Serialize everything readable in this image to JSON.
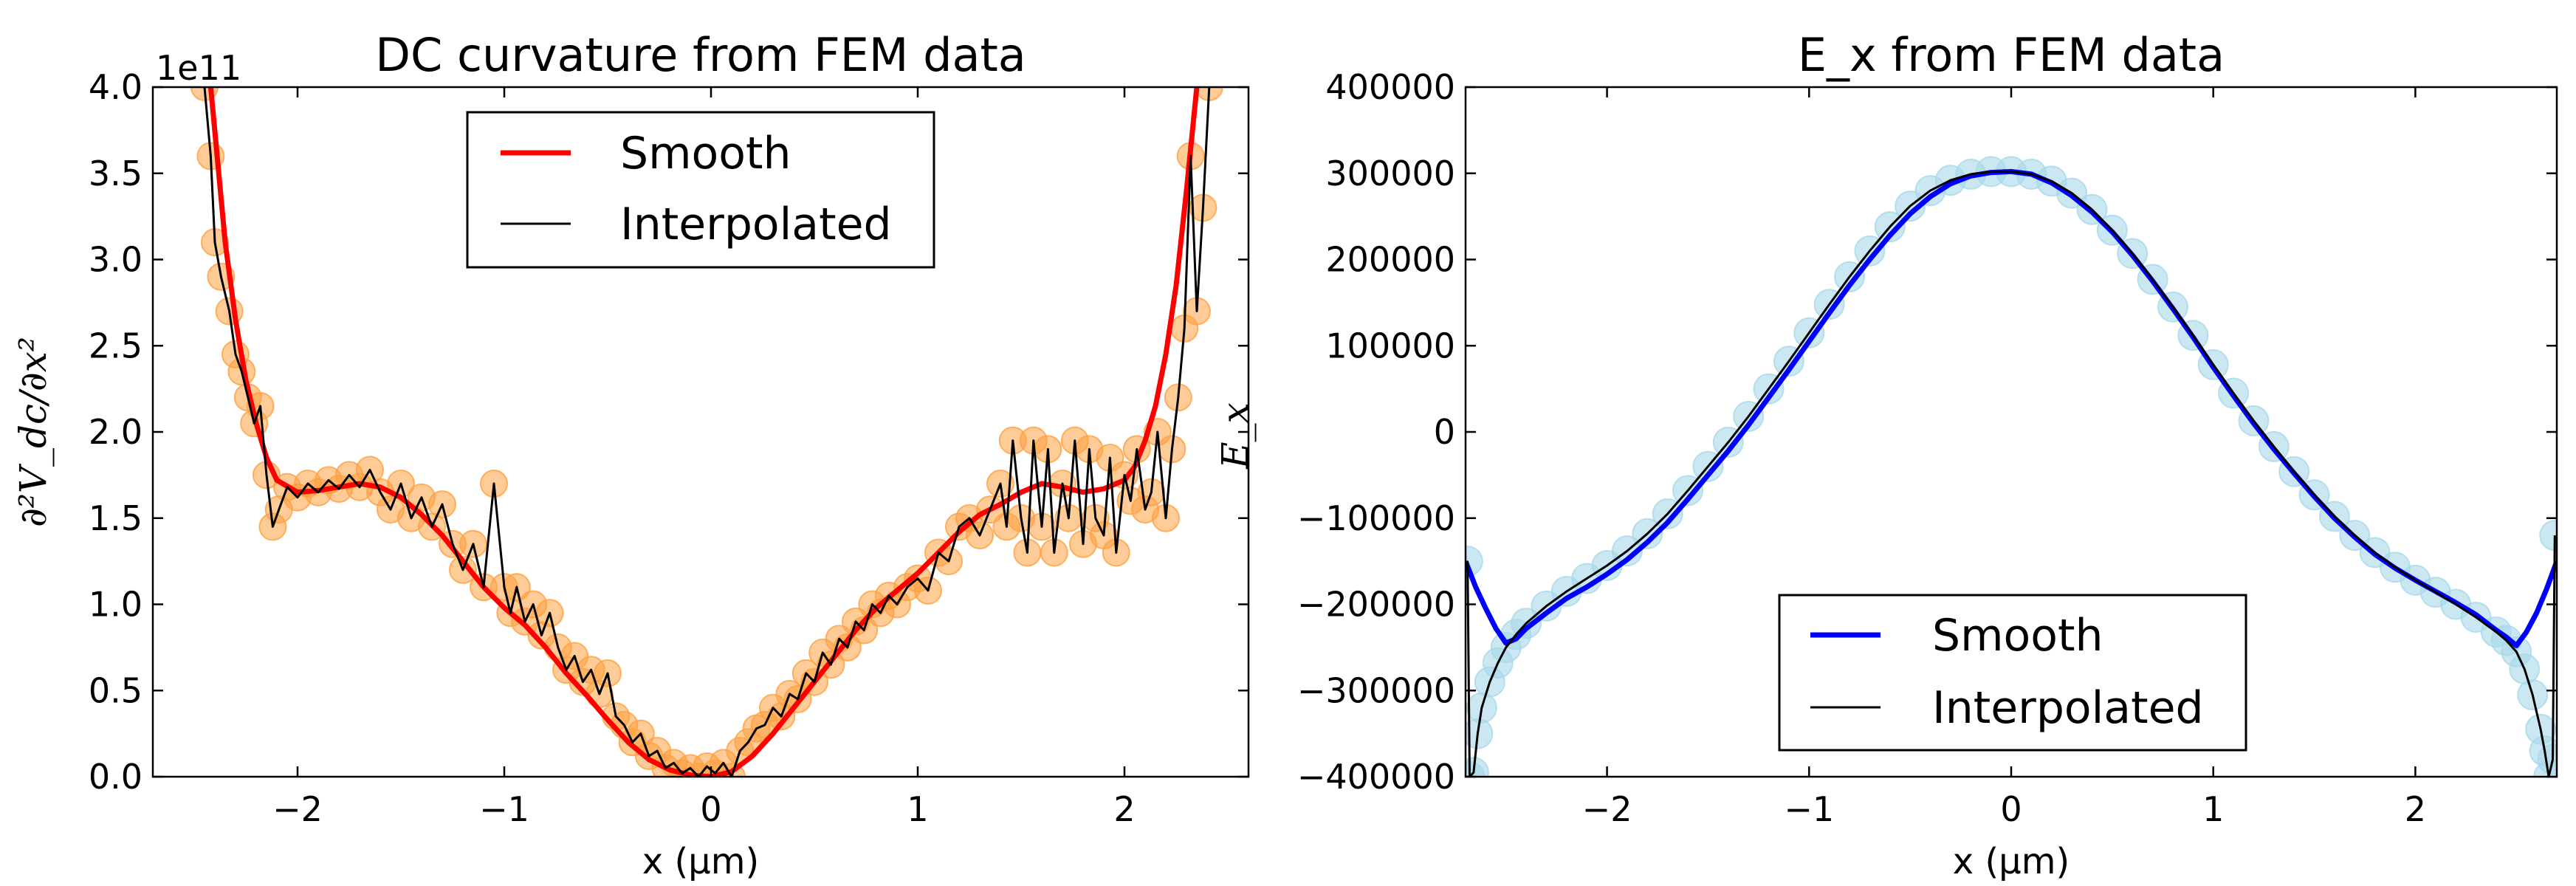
{
  "chart_data": [
    {
      "type": "line",
      "title": "DC curvature from FEM data",
      "xlabel": "x (μm)",
      "ylabel": "∂²V_dc/∂x²",
      "offset_text": "1e11",
      "xlim": [
        -2.7,
        2.6
      ],
      "ylim": [
        0,
        4.0
      ],
      "xticks": [
        -2,
        -1,
        0,
        1,
        2
      ],
      "xtick_labels": [
        "−2",
        "−1",
        "0",
        "1",
        "2"
      ],
      "yticks": [
        0,
        0.5,
        1.0,
        1.5,
        2.0,
        2.5,
        3.0,
        3.5,
        4.0
      ],
      "ytick_labels": [
        "0.0",
        "0.5",
        "1.0",
        "1.5",
        "2.0",
        "2.5",
        "3.0",
        "3.5",
        "4.0"
      ],
      "legend": {
        "placement": "top-center",
        "entries": [
          "Smooth",
          "Interpolated"
        ]
      },
      "colors": {
        "smooth": "#ff0000",
        "interpolated": "#000000",
        "markers": "#ffa040"
      },
      "series": [
        {
          "name": "Smooth",
          "x": [
            -2.42,
            -2.35,
            -2.3,
            -2.25,
            -2.2,
            -2.15,
            -2.1,
            -2.0,
            -1.9,
            -1.8,
            -1.7,
            -1.6,
            -1.5,
            -1.4,
            -1.3,
            -1.2,
            -1.1,
            -1.0,
            -0.9,
            -0.8,
            -0.7,
            -0.6,
            -0.5,
            -0.4,
            -0.3,
            -0.2,
            -0.1,
            0.0,
            0.1,
            0.2,
            0.3,
            0.4,
            0.5,
            0.6,
            0.7,
            0.8,
            0.9,
            1.0,
            1.1,
            1.2,
            1.3,
            1.4,
            1.5,
            1.6,
            1.7,
            1.8,
            1.9,
            2.0,
            2.05,
            2.1,
            2.15,
            2.2,
            2.25,
            2.3,
            2.35
          ],
          "y": [
            4.0,
            3.1,
            2.65,
            2.3,
            2.05,
            1.85,
            1.72,
            1.65,
            1.66,
            1.68,
            1.7,
            1.68,
            1.62,
            1.52,
            1.4,
            1.25,
            1.1,
            0.98,
            0.88,
            0.75,
            0.6,
            0.47,
            0.33,
            0.2,
            0.1,
            0.04,
            0.01,
            0.0,
            0.03,
            0.12,
            0.25,
            0.4,
            0.55,
            0.7,
            0.85,
            0.98,
            1.08,
            1.18,
            1.3,
            1.42,
            1.52,
            1.58,
            1.65,
            1.7,
            1.68,
            1.65,
            1.67,
            1.72,
            1.8,
            1.95,
            2.15,
            2.45,
            2.85,
            3.4,
            4.0
          ]
        },
        {
          "name": "Interpolated",
          "x": [
            -2.45,
            -2.42,
            -2.4,
            -2.37,
            -2.33,
            -2.3,
            -2.27,
            -2.24,
            -2.21,
            -2.18,
            -2.15,
            -2.12,
            -2.09,
            -2.05,
            -2.0,
            -1.95,
            -1.9,
            -1.85,
            -1.8,
            -1.75,
            -1.7,
            -1.65,
            -1.6,
            -1.55,
            -1.5,
            -1.45,
            -1.4,
            -1.35,
            -1.3,
            -1.25,
            -1.2,
            -1.15,
            -1.1,
            -1.05,
            -1.0,
            -0.97,
            -0.94,
            -0.9,
            -0.86,
            -0.82,
            -0.78,
            -0.74,
            -0.7,
            -0.66,
            -0.62,
            -0.58,
            -0.54,
            -0.5,
            -0.46,
            -0.42,
            -0.38,
            -0.34,
            -0.3,
            -0.26,
            -0.22,
            -0.18,
            -0.14,
            -0.1,
            -0.06,
            -0.02,
            0.02,
            0.06,
            0.1,
            0.14,
            0.18,
            0.22,
            0.26,
            0.3,
            0.34,
            0.38,
            0.42,
            0.46,
            0.5,
            0.54,
            0.58,
            0.62,
            0.66,
            0.7,
            0.74,
            0.78,
            0.82,
            0.86,
            0.9,
            0.95,
            1.0,
            1.05,
            1.1,
            1.15,
            1.2,
            1.25,
            1.3,
            1.35,
            1.4,
            1.43,
            1.46,
            1.5,
            1.53,
            1.56,
            1.6,
            1.63,
            1.66,
            1.7,
            1.73,
            1.76,
            1.8,
            1.83,
            1.86,
            1.9,
            1.93,
            1.96,
            2.0,
            2.03,
            2.06,
            2.1,
            2.13,
            2.16,
            2.2,
            2.23,
            2.26,
            2.29,
            2.32,
            2.35,
            2.38,
            2.41
          ],
          "y": [
            4.0,
            3.6,
            3.1,
            2.9,
            2.7,
            2.45,
            2.35,
            2.2,
            2.05,
            2.15,
            1.75,
            1.45,
            1.55,
            1.68,
            1.62,
            1.7,
            1.65,
            1.72,
            1.67,
            1.75,
            1.68,
            1.78,
            1.65,
            1.55,
            1.7,
            1.5,
            1.62,
            1.45,
            1.58,
            1.35,
            1.2,
            1.35,
            1.1,
            1.7,
            1.1,
            0.95,
            1.1,
            0.9,
            1.0,
            0.82,
            0.95,
            0.75,
            0.62,
            0.7,
            0.55,
            0.62,
            0.48,
            0.6,
            0.35,
            0.3,
            0.2,
            0.25,
            0.12,
            0.15,
            0.05,
            0.08,
            0.02,
            0.05,
            0.0,
            0.06,
            0.02,
            0.08,
            0.0,
            0.15,
            0.2,
            0.28,
            0.3,
            0.4,
            0.35,
            0.48,
            0.45,
            0.6,
            0.55,
            0.72,
            0.65,
            0.8,
            0.75,
            0.9,
            0.85,
            1.0,
            0.95,
            1.05,
            1.0,
            1.1,
            1.15,
            1.08,
            1.3,
            1.25,
            1.45,
            1.5,
            1.4,
            1.55,
            1.7,
            1.45,
            1.95,
            1.5,
            1.3,
            1.95,
            1.45,
            1.9,
            1.3,
            1.7,
            1.5,
            1.95,
            1.35,
            1.9,
            1.5,
            1.4,
            1.85,
            1.3,
            1.75,
            1.6,
            1.9,
            1.55,
            1.65,
            2.0,
            1.5,
            1.9,
            2.2,
            2.6,
            3.6,
            2.7,
            3.3,
            4.0
          ]
        }
      ]
    },
    {
      "type": "line",
      "title": "E_x from FEM data",
      "xlabel": "x (μm)",
      "ylabel": "E_x",
      "xlim": [
        -2.7,
        2.7
      ],
      "ylim": [
        -400000,
        400000
      ],
      "xticks": [
        -2,
        -1,
        0,
        1,
        2
      ],
      "xtick_labels": [
        "−2",
        "−1",
        "0",
        "1",
        "2"
      ],
      "yticks": [
        -400000,
        -300000,
        -200000,
        -100000,
        0,
        100000,
        200000,
        300000,
        400000
      ],
      "ytick_labels": [
        "−400000",
        "−300000",
        "−200000",
        "−100000",
        "0",
        "100000",
        "200000",
        "300000",
        "400000"
      ],
      "legend": {
        "placement": "lower-center",
        "entries": [
          "Smooth",
          "Interpolated"
        ]
      },
      "colors": {
        "smooth": "#0000ff",
        "interpolated": "#000000",
        "markers": "#a8d8ea"
      },
      "series": [
        {
          "name": "Smooth",
          "x": [
            -2.7,
            -2.65,
            -2.6,
            -2.55,
            -2.5,
            -2.45,
            -2.4,
            -2.3,
            -2.2,
            -2.1,
            -2.0,
            -1.9,
            -1.8,
            -1.7,
            -1.6,
            -1.5,
            -1.4,
            -1.3,
            -1.2,
            -1.1,
            -1.0,
            -0.9,
            -0.8,
            -0.7,
            -0.6,
            -0.5,
            -0.4,
            -0.3,
            -0.2,
            -0.1,
            0.0,
            0.1,
            0.2,
            0.3,
            0.4,
            0.5,
            0.6,
            0.7,
            0.8,
            0.9,
            1.0,
            1.1,
            1.2,
            1.3,
            1.4,
            1.5,
            1.6,
            1.7,
            1.8,
            1.9,
            2.0,
            2.1,
            2.2,
            2.3,
            2.4,
            2.45,
            2.5,
            2.55,
            2.6,
            2.65,
            2.7
          ],
          "y": [
            -150000,
            -180000,
            -205000,
            -228000,
            -245000,
            -240000,
            -228000,
            -210000,
            -193000,
            -180000,
            -165000,
            -148000,
            -128000,
            -105000,
            -78000,
            -50000,
            -22000,
            8000,
            40000,
            72000,
            105000,
            138000,
            170000,
            200000,
            228000,
            253000,
            273000,
            288000,
            297000,
            301000,
            302000,
            299000,
            289000,
            274000,
            255000,
            232000,
            205000,
            175000,
            143000,
            110000,
            75000,
            42000,
            10000,
            -20000,
            -48000,
            -75000,
            -100000,
            -122000,
            -142000,
            -158000,
            -172000,
            -185000,
            -198000,
            -212000,
            -230000,
            -238000,
            -248000,
            -232000,
            -210000,
            -182000,
            -150000
          ]
        },
        {
          "name": "Interpolated",
          "x": [
            -2.69,
            -2.68,
            -2.66,
            -2.64,
            -2.62,
            -2.58,
            -2.54,
            -2.5,
            -2.45,
            -2.4,
            -2.3,
            -2.2,
            -2.1,
            -2.0,
            -1.9,
            -1.8,
            -1.7,
            -1.6,
            -1.5,
            -1.4,
            -1.3,
            -1.2,
            -1.1,
            -1.0,
            -0.9,
            -0.8,
            -0.7,
            -0.6,
            -0.5,
            -0.4,
            -0.3,
            -0.2,
            -0.1,
            0.0,
            0.1,
            0.2,
            0.3,
            0.4,
            0.5,
            0.6,
            0.7,
            0.8,
            0.9,
            1.0,
            1.1,
            1.2,
            1.3,
            1.4,
            1.5,
            1.6,
            1.7,
            1.8,
            1.9,
            2.0,
            2.1,
            2.2,
            2.3,
            2.4,
            2.45,
            2.5,
            2.54,
            2.58,
            2.62,
            2.64,
            2.66,
            2.68,
            2.69
          ],
          "y": [
            -150000,
            -400000,
            -395000,
            -350000,
            -320000,
            -290000,
            -268000,
            -250000,
            -235000,
            -222000,
            -202000,
            -185000,
            -170000,
            -155000,
            -138000,
            -118000,
            -95000,
            -68000,
            -40000,
            -12000,
            18000,
            50000,
            82000,
            115000,
            148000,
            180000,
            210000,
            238000,
            262000,
            280000,
            292000,
            299000,
            302000,
            302000,
            299000,
            291000,
            277000,
            258000,
            234000,
            207000,
            177000,
            145000,
            112000,
            78000,
            45000,
            13000,
            -17000,
            -46000,
            -73000,
            -98000,
            -120000,
            -140000,
            -157000,
            -172000,
            -186000,
            -200000,
            -215000,
            -232000,
            -242000,
            -255000,
            -275000,
            -305000,
            -345000,
            -370000,
            -400000,
            -380000,
            -120000
          ]
        }
      ]
    }
  ]
}
